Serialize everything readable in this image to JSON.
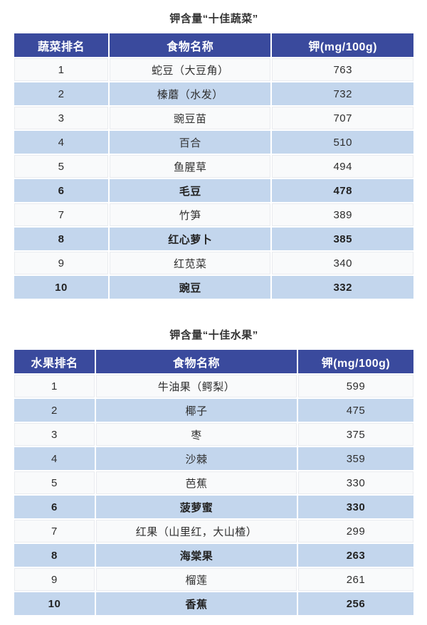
{
  "colors": {
    "header_bg": "#3a4a9d",
    "header_text": "#ffffff",
    "row_alt_bg": "#c3d6ed",
    "row_bg": "#f9fafb",
    "body_text": "#2e2e2e",
    "title_text": "#333333"
  },
  "tables": [
    {
      "id": "vegetables",
      "title": "钾含量“十佳蔬菜”",
      "columns": [
        "蔬菜排名",
        "食物名称",
        "钾(mg/100g)"
      ],
      "rows": [
        {
          "rank": "1",
          "name": "蛇豆（大豆角）",
          "value": "763",
          "emphasis": false
        },
        {
          "rank": "2",
          "name": "榛蘑（水发）",
          "value": "732",
          "emphasis": false
        },
        {
          "rank": "3",
          "name": "豌豆苗",
          "value": "707",
          "emphasis": false
        },
        {
          "rank": "4",
          "name": "百合",
          "value": "510",
          "emphasis": false
        },
        {
          "rank": "5",
          "name": "鱼腥草",
          "value": "494",
          "emphasis": false
        },
        {
          "rank": "6",
          "name": "毛豆",
          "value": "478",
          "emphasis": true
        },
        {
          "rank": "7",
          "name": "竹笋",
          "value": "389",
          "emphasis": false
        },
        {
          "rank": "8",
          "name": "红心萝卜",
          "value": "385",
          "emphasis": true
        },
        {
          "rank": "9",
          "name": "红苋菜",
          "value": "340",
          "emphasis": false
        },
        {
          "rank": "10",
          "name": "豌豆",
          "value": "332",
          "emphasis": true
        }
      ]
    },
    {
      "id": "fruits",
      "title": "钾含量“十佳水果”",
      "columns": [
        "水果排名",
        "食物名称",
        "钾(mg/100g)"
      ],
      "rows": [
        {
          "rank": "1",
          "name": "牛油果（鳄梨）",
          "value": "599",
          "emphasis": false
        },
        {
          "rank": "2",
          "name": "椰子",
          "value": "475",
          "emphasis": false
        },
        {
          "rank": "3",
          "name": "枣",
          "value": "375",
          "emphasis": false
        },
        {
          "rank": "4",
          "name": "沙棘",
          "value": "359",
          "emphasis": false
        },
        {
          "rank": "5",
          "name": "芭蕉",
          "value": "330",
          "emphasis": false
        },
        {
          "rank": "6",
          "name": "菠萝蜜",
          "value": "330",
          "emphasis": true
        },
        {
          "rank": "7",
          "name": "红果（山里红，大山楂）",
          "value": "299",
          "emphasis": false
        },
        {
          "rank": "8",
          "name": "海棠果",
          "value": "263",
          "emphasis": true
        },
        {
          "rank": "9",
          "name": "榴莲",
          "value": "261",
          "emphasis": false
        },
        {
          "rank": "10",
          "name": "香蕉",
          "value": "256",
          "emphasis": true
        }
      ]
    }
  ]
}
